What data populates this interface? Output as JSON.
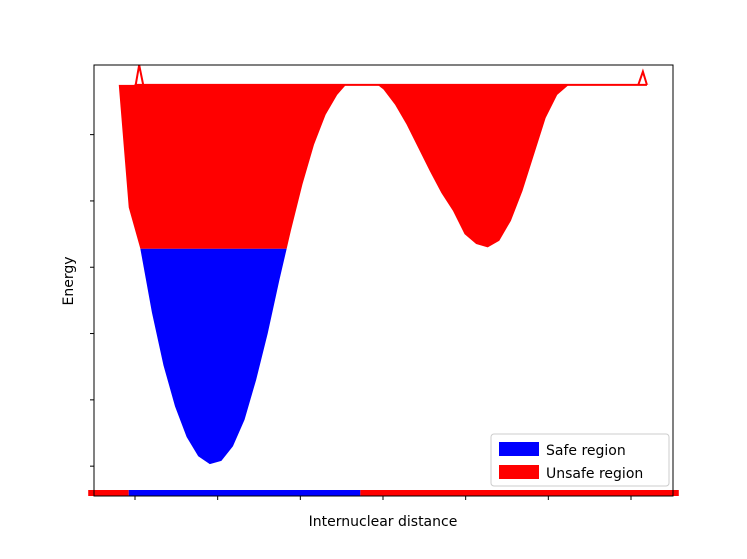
{
  "chart_data": {
    "type": "area",
    "title": "",
    "xlabel": "Internuclear distance",
    "ylabel": "Energy",
    "xlim": [
      0,
      1
    ],
    "ylim": [
      -0.45,
      6.05
    ],
    "x_ticks": [
      0,
      1,
      2,
      3,
      4,
      5,
      6
    ],
    "y_ticks": [
      0,
      1,
      2,
      3,
      4,
      5
    ],
    "tick_labels_shown": false,
    "grid": false,
    "legend_position": "lower-right",
    "potential_curve": {
      "x": [
        0.04,
        0.06,
        0.08,
        0.1,
        0.12,
        0.14,
        0.16,
        0.18,
        0.2,
        0.22,
        0.24,
        0.26,
        0.28,
        0.3,
        0.32,
        0.34,
        0.36,
        0.38,
        0.4,
        0.42,
        0.44,
        0.46,
        0.48,
        0.5,
        0.52,
        0.54,
        0.56,
        0.58,
        0.6,
        0.62,
        0.64,
        0.66,
        0.68,
        0.7,
        0.72,
        0.74,
        0.76,
        0.78,
        0.8,
        0.82,
        0.84,
        0.86,
        0.88,
        0.9,
        0.92,
        0.94,
        0.96
      ],
      "y": [
        6.05,
        3.9,
        3.28,
        2.32,
        1.52,
        0.9,
        0.44,
        0.15,
        0.03,
        0.08,
        0.3,
        0.7,
        1.3,
        2.0,
        2.8,
        3.55,
        4.25,
        4.85,
        5.3,
        5.6,
        5.8,
        5.87,
        5.82,
        5.68,
        5.45,
        5.15,
        4.8,
        4.45,
        4.12,
        3.85,
        3.5,
        3.35,
        3.3,
        3.4,
        3.7,
        4.15,
        4.7,
        5.25,
        5.6,
        5.75,
        5.75,
        5.75,
        5.75,
        5.75,
        5.75,
        5.75,
        5.75
      ]
    },
    "levels": {
      "safe_max_energy": 3.28,
      "unsafe_max_energy": 5.75
    },
    "series": [
      {
        "name": "Safe region",
        "color": "#0000ff",
        "energy_range": [
          0.03,
          3.28
        ]
      },
      {
        "name": "Unsafe region",
        "color": "#ff0000",
        "energy_range": [
          3.28,
          5.75
        ]
      }
    ],
    "distance_bar": [
      {
        "region": "Unsafe region",
        "x_range": [
          -0.01,
          0.06
        ],
        "color": "#ff0000"
      },
      {
        "region": "Safe region",
        "x_range": [
          0.06,
          0.46
        ],
        "color": "#0000ff"
      },
      {
        "region": "Unsafe region",
        "x_range": [
          0.46,
          1.01
        ],
        "color": "#ff0000"
      }
    ]
  }
}
